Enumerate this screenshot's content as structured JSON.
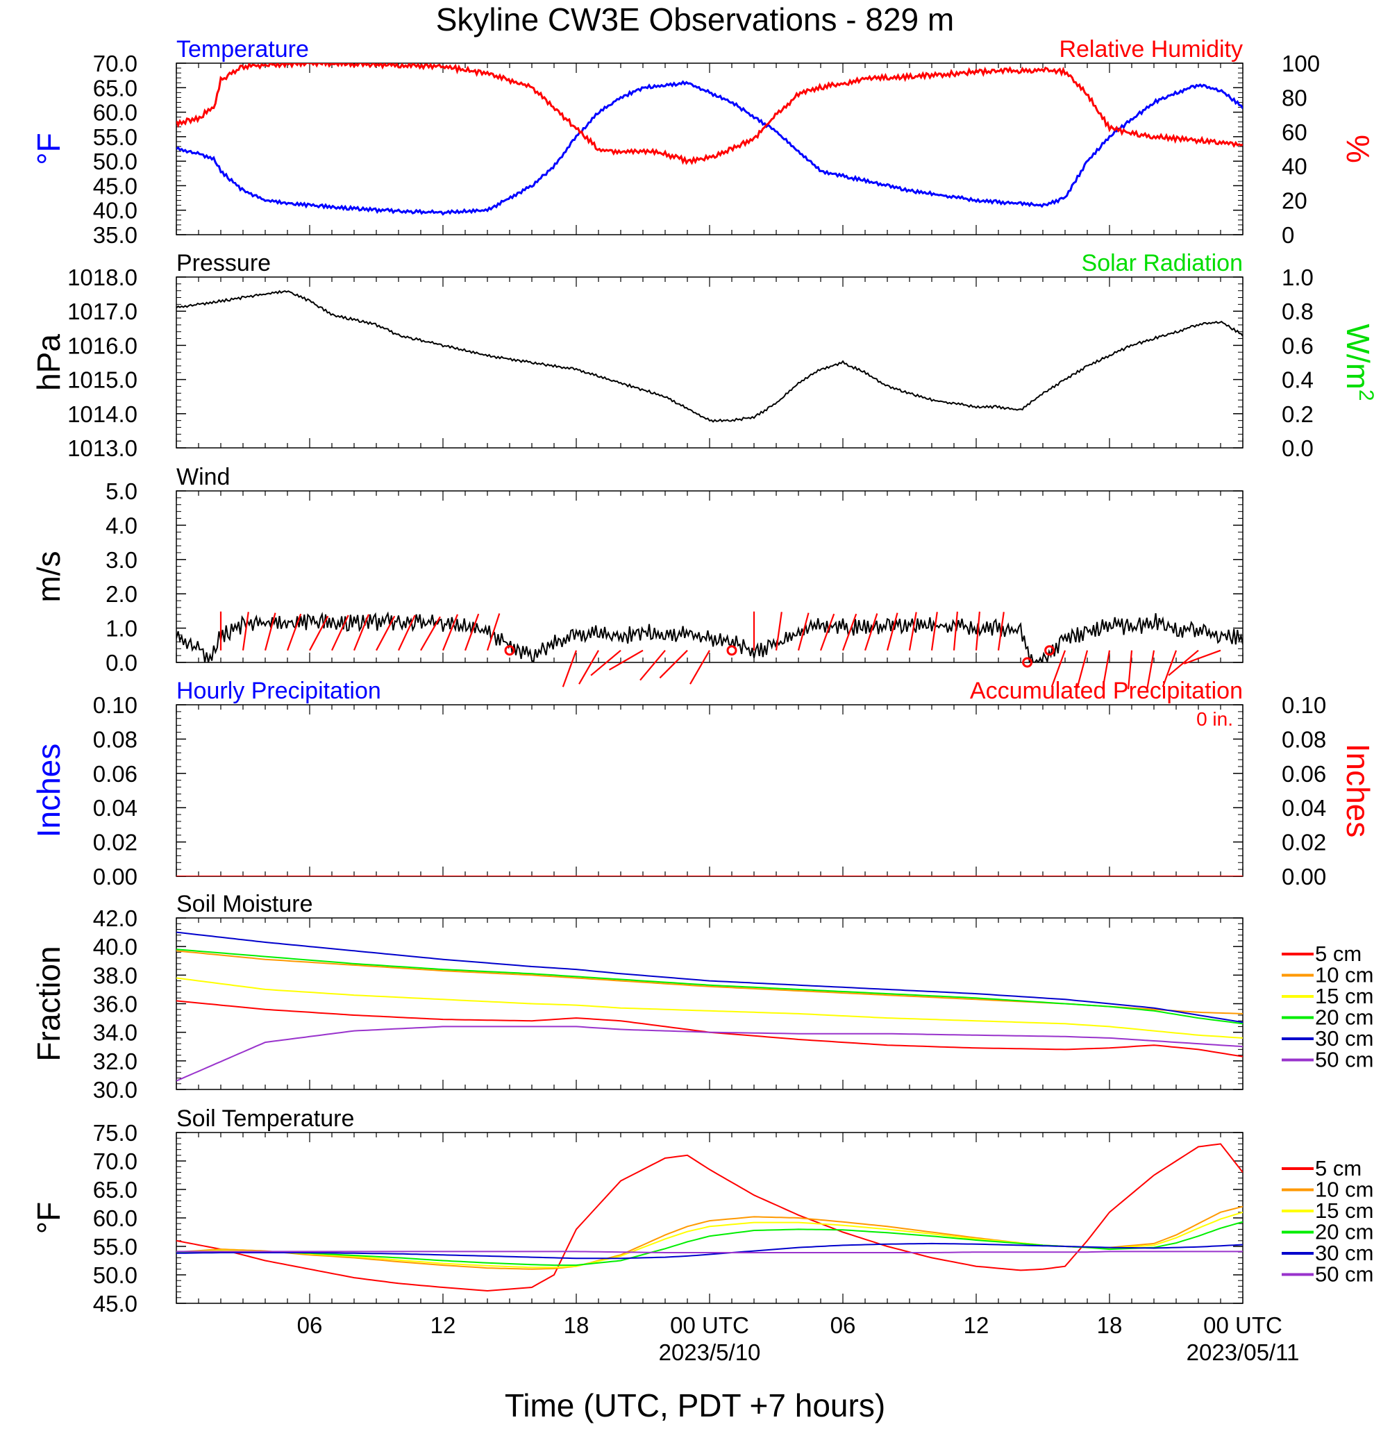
{
  "title": "Skyline CW3E Observations - 829 m",
  "xlabel": "Time (UTC, PDT +7 hours)",
  "x_axis": {
    "ticks": [
      "06",
      "12",
      "18",
      "00 UTC",
      "06",
      "12",
      "18",
      "00 UTC"
    ],
    "dates": [
      "2023/5/10",
      "2023/05/11"
    ]
  },
  "colors": {
    "temperature": "#0000ff",
    "humidity": "#ff0000",
    "solar": "#00dd00",
    "pressure": "#000000",
    "wind": "#000000",
    "barb": "#ff0000",
    "soil": {
      "5 cm": "#ff0000",
      "10 cm": "#ff9900",
      "15 cm": "#ffff00",
      "20 cm": "#00ee00",
      "30 cm": "#0000cc",
      "50 cm": "#9933cc"
    }
  },
  "chart_data": [
    {
      "id": "temp_rh",
      "type": "line",
      "title_left": "Temperature",
      "title_right": "Relative Humidity",
      "ylabel_left": "°F",
      "ylabel_right": "%",
      "ylim_left": [
        35,
        70
      ],
      "ylim_right": [
        0,
        100
      ],
      "yticks_left": [
        "70.0",
        "65.0",
        "60.0",
        "55.0",
        "50.0",
        "45.0",
        "40.0",
        "35.0"
      ],
      "yticks_right": [
        "100",
        "80",
        "60",
        "40",
        "20",
        "0"
      ],
      "x_hours": [
        0,
        1,
        1.7,
        2,
        3,
        4,
        6,
        9,
        12,
        14,
        16,
        17,
        18,
        19,
        20,
        21,
        22,
        23,
        24,
        25,
        26,
        27,
        28,
        29,
        30,
        31,
        33,
        36,
        39,
        40,
        41,
        42,
        43,
        44,
        45,
        46,
        47,
        48
      ],
      "series": [
        {
          "name": "Temperature",
          "axis": "left",
          "values": [
            52.5,
            51.5,
            50.5,
            48,
            44,
            42,
            41,
            40,
            39.5,
            40,
            45,
            49,
            55,
            60,
            63,
            65,
            65.5,
            66,
            64,
            62,
            59,
            56,
            52,
            48,
            47,
            46,
            44,
            42,
            41,
            42.5,
            50,
            55,
            58.5,
            62,
            64,
            65.5,
            64.5,
            61
          ]
        },
        {
          "name": "Relative Humidity",
          "axis": "right",
          "values": [
            65,
            68,
            75,
            90,
            98,
            99,
            100,
            99,
            98,
            94,
            86,
            74,
            62,
            50,
            48,
            49,
            47,
            43,
            45,
            50,
            56,
            70,
            82,
            86,
            88,
            91,
            92,
            95,
            96,
            95,
            82,
            62,
            59,
            57,
            56,
            55,
            54,
            52
          ]
        }
      ]
    },
    {
      "id": "pressure",
      "type": "line",
      "title_left": "Pressure",
      "title_right": "Solar Radiation",
      "ylabel_left": "hPa",
      "ylabel_right": "W/m",
      "ylabel_right_sup": "2",
      "ylim_left": [
        1013,
        1018
      ],
      "ylim_right": [
        0,
        1
      ],
      "yticks_left": [
        "1018.0",
        "1017.0",
        "1016.0",
        "1015.0",
        "1014.0",
        "1013.0"
      ],
      "yticks_right": [
        "1.0",
        "0.8",
        "0.6",
        "0.4",
        "0.2",
        "0.0"
      ],
      "x_hours": [
        0,
        2,
        4,
        5,
        6,
        7,
        9,
        10,
        12,
        14,
        16,
        17,
        18,
        20,
        21,
        22,
        24,
        25,
        26,
        27,
        28,
        29,
        30,
        31,
        32,
        34,
        35,
        36,
        37,
        38,
        39,
        40,
        41,
        42,
        43,
        44,
        45,
        46,
        47,
        48
      ],
      "series": [
        {
          "name": "Pressure",
          "axis": "left",
          "values": [
            1017.1,
            1017.3,
            1017.5,
            1017.6,
            1017.3,
            1016.9,
            1016.6,
            1016.3,
            1016.0,
            1015.7,
            1015.5,
            1015.4,
            1015.3,
            1014.9,
            1014.7,
            1014.5,
            1013.8,
            1013.8,
            1013.9,
            1014.3,
            1014.9,
            1015.3,
            1015.5,
            1015.2,
            1014.8,
            1014.4,
            1014.3,
            1014.2,
            1014.2,
            1014.1,
            1014.6,
            1015.0,
            1015.4,
            1015.7,
            1016.0,
            1016.2,
            1016.4,
            1016.6,
            1016.7,
            1016.3
          ]
        }
      ]
    },
    {
      "id": "wind",
      "type": "line",
      "title_left": "Wind",
      "ylabel_left": "m/s",
      "ylim_left": [
        0,
        5
      ],
      "yticks_left": [
        "5.0",
        "4.0",
        "3.0",
        "2.0",
        "1.0",
        "0.0"
      ],
      "x_hours": [
        0,
        1,
        1.5,
        2,
        3,
        5,
        8,
        11,
        13,
        14,
        15,
        16,
        17,
        18,
        19,
        20,
        21,
        22,
        23,
        24,
        25,
        26,
        27,
        28,
        29,
        31,
        33,
        35,
        36,
        37,
        38,
        38.5,
        39,
        40,
        41,
        42,
        43,
        44,
        45,
        46,
        47,
        48
      ],
      "series": [
        {
          "name": "Wind",
          "axis": "left",
          "values": [
            0.7,
            0.4,
            0.1,
            0.8,
            1.1,
            1.2,
            1.15,
            1.2,
            1.05,
            0.9,
            0.5,
            0.2,
            0.6,
            0.8,
            0.9,
            0.75,
            0.9,
            0.8,
            0.85,
            0.7,
            0.6,
            0.3,
            0.5,
            0.9,
            1.1,
            1.0,
            1.1,
            1.05,
            1.0,
            1.0,
            0.9,
            0.0,
            0.1,
            0.7,
            0.9,
            1.1,
            1.0,
            1.2,
            1.0,
            0.9,
            0.8,
            0.7
          ]
        }
      ],
      "barbs": {
        "x_hours": [
          2,
          3,
          4,
          5,
          6,
          7,
          8,
          9,
          10,
          11,
          12,
          13,
          14,
          18,
          19,
          20,
          21,
          22,
          23,
          24,
          26,
          27,
          28,
          29,
          30,
          31,
          32,
          33,
          34,
          35,
          36,
          37,
          40,
          41,
          42,
          43,
          44,
          45,
          46,
          47
        ],
        "angle_deg_from_vertical": [
          0,
          8,
          15,
          20,
          28,
          25,
          22,
          28,
          25,
          30,
          22,
          20,
          18,
          200,
          210,
          230,
          240,
          220,
          225,
          210,
          0,
          8,
          15,
          20,
          20,
          18,
          15,
          10,
          8,
          5,
          5,
          8,
          200,
          195,
          190,
          185,
          190,
          200,
          230,
          250
        ],
        "calm_x_hours": [
          15,
          25,
          38.3,
          39.3
        ]
      }
    },
    {
      "id": "precip",
      "type": "line",
      "title_left": "Hourly Precipitation",
      "title_right": "Accumulated Precipitation",
      "annotation": "0 in.",
      "ylabel_left": "Inches",
      "ylabel_right": "Inches",
      "ylim_left": [
        0,
        0.1
      ],
      "ylim_right": [
        0,
        0.1
      ],
      "yticks_left": [
        "0.10",
        "0.08",
        "0.06",
        "0.04",
        "0.02",
        "0.00"
      ],
      "yticks_right": [
        "0.10",
        "0.08",
        "0.06",
        "0.04",
        "0.02",
        "0.00"
      ],
      "x_hours": [
        0,
        48
      ],
      "series": [
        {
          "name": "Hourly Precipitation",
          "axis": "left",
          "values": [
            0,
            0
          ]
        },
        {
          "name": "Accumulated Precipitation",
          "axis": "right",
          "values": [
            0,
            0
          ]
        }
      ]
    },
    {
      "id": "soil_moisture",
      "type": "line",
      "title_left": "Soil Moisture",
      "ylabel_left": "Fraction",
      "ylim_left": [
        30,
        42
      ],
      "yticks_left": [
        "42.0",
        "40.0",
        "38.0",
        "36.0",
        "34.0",
        "32.0",
        "30.0"
      ],
      "legend": [
        "5 cm",
        "10 cm",
        "15 cm",
        "20 cm",
        "30 cm",
        "50 cm"
      ],
      "x_hours": [
        0,
        4,
        8,
        12,
        16,
        18,
        20,
        24,
        28,
        32,
        36,
        40,
        42,
        44,
        46,
        48
      ],
      "series": [
        {
          "name": "5 cm",
          "axis": "left",
          "values": [
            36.2,
            35.6,
            35.2,
            34.9,
            34.8,
            35.0,
            34.8,
            34.0,
            33.5,
            33.1,
            32.9,
            32.8,
            32.9,
            33.1,
            32.8,
            32.3
          ]
        },
        {
          "name": "10 cm",
          "axis": "left",
          "values": [
            39.7,
            39.1,
            38.7,
            38.3,
            38.0,
            37.8,
            37.6,
            37.2,
            36.9,
            36.6,
            36.3,
            36.0,
            35.8,
            35.6,
            35.4,
            35.3
          ]
        },
        {
          "name": "15 cm",
          "axis": "left",
          "values": [
            37.8,
            37.0,
            36.6,
            36.3,
            36.0,
            35.9,
            35.7,
            35.5,
            35.3,
            35.0,
            34.8,
            34.6,
            34.4,
            34.1,
            33.8,
            33.6
          ]
        },
        {
          "name": "20 cm",
          "axis": "left",
          "values": [
            39.8,
            39.3,
            38.8,
            38.4,
            38.1,
            37.9,
            37.7,
            37.3,
            37.0,
            36.7,
            36.4,
            36.0,
            35.8,
            35.5,
            35.0,
            34.6
          ]
        },
        {
          "name": "30 cm",
          "axis": "left",
          "values": [
            41.0,
            40.3,
            39.7,
            39.1,
            38.6,
            38.4,
            38.1,
            37.6,
            37.3,
            37.0,
            36.7,
            36.3,
            36.0,
            35.7,
            35.2,
            34.7
          ]
        },
        {
          "name": "50 cm",
          "axis": "left",
          "values": [
            30.6,
            33.3,
            34.1,
            34.4,
            34.4,
            34.4,
            34.2,
            34.0,
            33.9,
            33.9,
            33.8,
            33.7,
            33.6,
            33.4,
            33.2,
            33.0
          ]
        }
      ]
    },
    {
      "id": "soil_temperature",
      "type": "line",
      "title_left": "Soil Temperature",
      "ylabel_left": "°F",
      "ylim_left": [
        45,
        75
      ],
      "yticks_left": [
        "75.0",
        "70.0",
        "65.0",
        "60.0",
        "55.0",
        "50.0",
        "45.0"
      ],
      "legend": [
        "5 cm",
        "10 cm",
        "15 cm",
        "20 cm",
        "30 cm",
        "50 cm"
      ],
      "x_hours": [
        0,
        2,
        4,
        6,
        8,
        10,
        12,
        14,
        16,
        17,
        18,
        20,
        22,
        23,
        24,
        26,
        28,
        30,
        32,
        34,
        36,
        38,
        39,
        40,
        41,
        42,
        44,
        45,
        46,
        47,
        48
      ],
      "series": [
        {
          "name": "5 cm",
          "axis": "left",
          "values": [
            56,
            54.5,
            52.5,
            51,
            49.5,
            48.5,
            47.8,
            47.2,
            47.8,
            50,
            58,
            66.5,
            70.5,
            71,
            68.5,
            64,
            60.5,
            57.5,
            55,
            53,
            51.5,
            50.8,
            51,
            51.5,
            56,
            61,
            67.5,
            70,
            72.5,
            73,
            68
          ]
        },
        {
          "name": "10 cm",
          "axis": "left",
          "values": [
            54,
            54.5,
            54.2,
            53.5,
            53,
            52.3,
            51.7,
            51.2,
            51,
            51.1,
            51.5,
            53.5,
            57,
            58.5,
            59.5,
            60.2,
            60,
            59.3,
            58.5,
            57.5,
            56.5,
            55.6,
            55.2,
            55,
            54.8,
            54.8,
            55.5,
            57,
            59,
            61,
            62
          ]
        },
        {
          "name": "15 cm",
          "axis": "left",
          "values": [
            54,
            54.3,
            54.1,
            53.7,
            53.2,
            52.6,
            52,
            51.6,
            51.3,
            51.3,
            51.5,
            53.3,
            56.3,
            57.6,
            58.5,
            59.2,
            59.2,
            58.7,
            58,
            57.2,
            56.3,
            55.6,
            55.2,
            55,
            54.8,
            54.7,
            55.2,
            56.5,
            58.2,
            59.8,
            61
          ]
        },
        {
          "name": "20 cm",
          "axis": "left",
          "values": [
            54,
            54.1,
            54,
            53.8,
            53.4,
            53,
            52.5,
            52.1,
            51.8,
            51.7,
            51.7,
            52.5,
            54.6,
            55.8,
            56.8,
            57.8,
            58,
            57.9,
            57.4,
            56.8,
            56.1,
            55.5,
            55.2,
            55,
            54.8,
            54.5,
            54.8,
            55.6,
            56.8,
            58.2,
            59.3
          ]
        },
        {
          "name": "30 cm",
          "axis": "left",
          "values": [
            53.8,
            53.9,
            53.9,
            53.9,
            53.8,
            53.7,
            53.5,
            53.3,
            53.1,
            53,
            52.9,
            52.9,
            53.1,
            53.3,
            53.6,
            54.2,
            54.8,
            55.2,
            55.4,
            55.5,
            55.4,
            55.2,
            55.1,
            55,
            54.9,
            54.8,
            54.7,
            54.8,
            54.9,
            55.1,
            55.3
          ]
        },
        {
          "name": "50 cm",
          "axis": "left",
          "values": [
            54.1,
            54.1,
            54.1,
            54.1,
            54.1,
            54.1,
            54.1,
            54.1,
            54.1,
            54.1,
            54.1,
            54.0,
            53.9,
            53.9,
            53.9,
            53.9,
            53.9,
            53.9,
            53.9,
            53.9,
            54.0,
            54.0,
            54.0,
            54.0,
            54.0,
            54.1,
            54.1,
            54.1,
            54.1,
            54.1,
            54.1
          ]
        }
      ]
    }
  ]
}
